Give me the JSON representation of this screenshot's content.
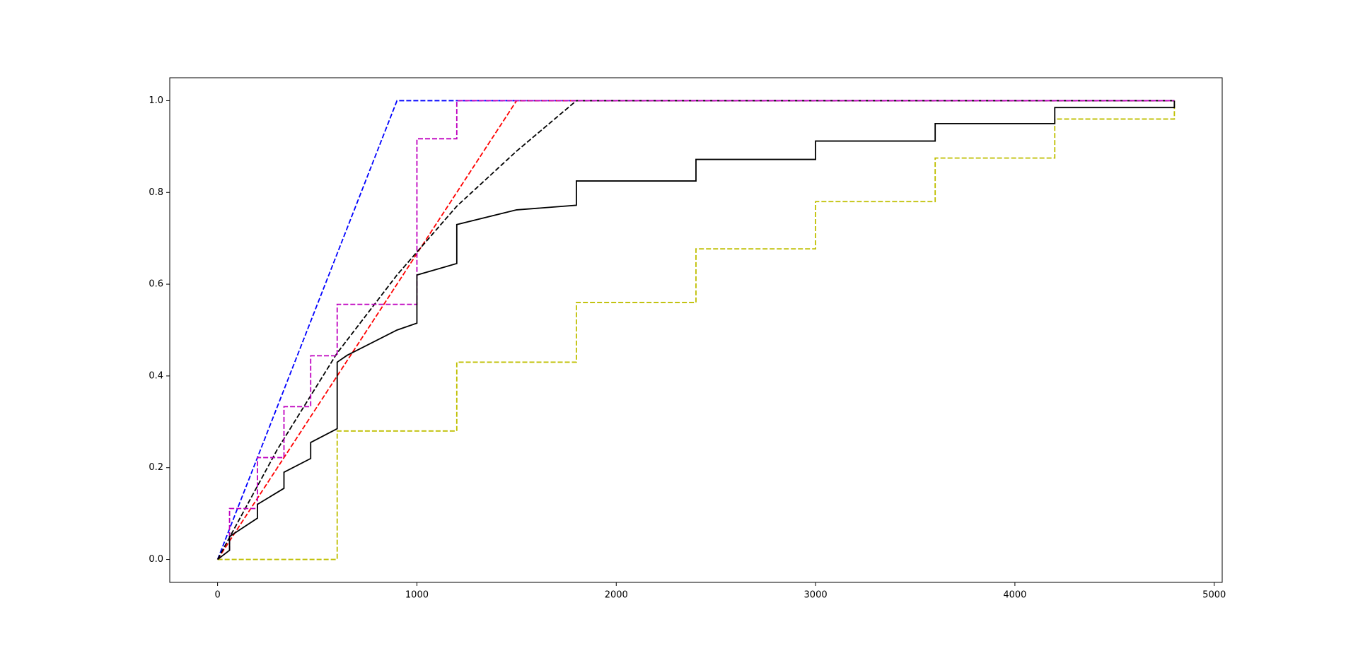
{
  "chart_data": {
    "type": "line",
    "xlim": [
      -240,
      5040
    ],
    "ylim": [
      -0.05,
      1.05
    ],
    "xticks": [
      0,
      1000,
      2000,
      3000,
      4000,
      5000
    ],
    "yticks": [
      {
        "value": 0,
        "label": "0.0"
      },
      0.2,
      0.4,
      0.6,
      0.8,
      {
        "value": 1,
        "label": "1.0"
      }
    ],
    "grid": false,
    "series": [
      {
        "color": "#0000ff",
        "linestyle": "dashed",
        "x": [
          0,
          900,
          4800
        ],
        "values": [
          0,
          1,
          1
        ]
      },
      {
        "color": "#ff0000",
        "linestyle": "dashed",
        "x": [
          0,
          1500,
          4800
        ],
        "values": [
          0,
          1,
          1
        ]
      },
      {
        "color": "#000000",
        "linestyle": "dashed",
        "x": [
          0,
          300,
          600,
          900,
          1200,
          1500,
          1800,
          4800
        ],
        "values": [
          0,
          0.24,
          0.45,
          0.62,
          0.77,
          0.89,
          1,
          1
        ]
      },
      {
        "color": "#bf00bf",
        "linestyle": "dashed",
        "x": [
          0,
          60,
          60,
          200,
          200,
          333,
          333,
          467,
          467,
          600,
          600,
          1000,
          1000,
          1200,
          1200,
          4800
        ],
        "values": [
          0,
          0.02,
          0.111,
          0.111,
          0.222,
          0.222,
          0.333,
          0.333,
          0.444,
          0.444,
          0.556,
          0.556,
          0.917,
          0.917,
          1,
          1
        ]
      },
      {
        "color": "#bfbf00",
        "linestyle": "dashed",
        "x": [
          0,
          600,
          600,
          1200,
          1200,
          1800,
          1800,
          2400,
          2400,
          3000,
          3000,
          3600,
          3600,
          4200,
          4200,
          4800,
          4800
        ],
        "values": [
          0,
          0,
          0.28,
          0.28,
          0.43,
          0.43,
          0.56,
          0.56,
          0.677,
          0.677,
          0.78,
          0.78,
          0.875,
          0.875,
          0.96,
          0.96,
          1
        ]
      },
      {
        "color": "#000000",
        "linestyle": "solid",
        "x": [
          0,
          60,
          60,
          200,
          200,
          333,
          333,
          467,
          467,
          600,
          600,
          650,
          900,
          1000,
          1000,
          1200,
          1200,
          1500,
          1800,
          1800,
          2400,
          2400,
          3000,
          3000,
          3600,
          3600,
          4200,
          4200,
          4800,
          4800
        ],
        "values": [
          0,
          0.02,
          0.05,
          0.09,
          0.12,
          0.155,
          0.19,
          0.22,
          0.255,
          0.285,
          0.43,
          0.445,
          0.5,
          0.515,
          0.62,
          0.645,
          0.73,
          0.762,
          0.772,
          0.825,
          0.825,
          0.872,
          0.872,
          0.912,
          0.912,
          0.95,
          0.95,
          0.985,
          0.985,
          1
        ]
      }
    ]
  }
}
